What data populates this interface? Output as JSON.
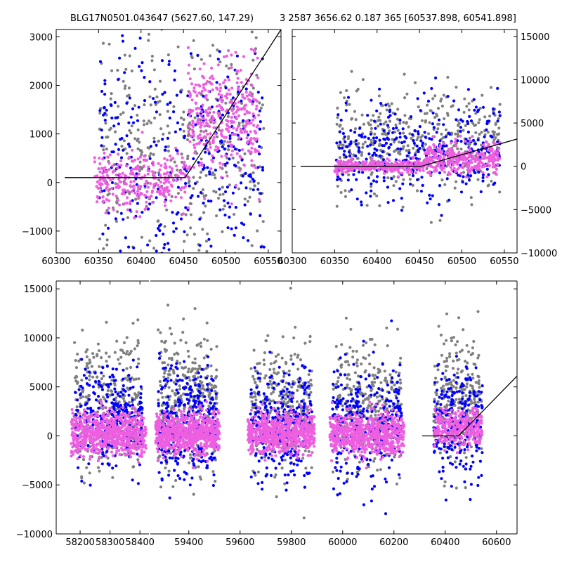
{
  "figure": {
    "title_left": "BLG17N0501.043647 (5627.60, 147.29)",
    "title_right": "3 2587 3656.62 0.187 365 [60537.898, 60541.898]"
  },
  "colors": {
    "series_gray": "#808080",
    "series_blue": "#0000ff",
    "series_magenta": "#ee5ee0",
    "model_line": "#000000"
  },
  "chart_data": [
    {
      "type": "scatter",
      "panel": "top-left",
      "xlim": [
        60300,
        60565
      ],
      "ylim": [
        -1450,
        3150
      ],
      "xticks": [
        60300,
        60350,
        60400,
        60450,
        60500,
        60550
      ],
      "yticks": [
        -1000,
        0,
        1000,
        2000,
        3000
      ],
      "ytick_side": "left",
      "grid": false,
      "series": [
        {
          "color": "#808080",
          "clusters": [
            [
              60350,
              60545,
              600,
              1500,
              420
            ]
          ]
        },
        {
          "color": "#0000ff",
          "clusters": [
            [
              60350,
              60545,
              500,
              1300,
              360
            ]
          ]
        },
        {
          "color": "#ee5ee0",
          "clusters": [
            [
              60345,
              60455,
              0,
              280,
              280
            ],
            [
              60455,
              60540,
              1300,
              650,
              340
            ]
          ]
        }
      ],
      "model_line": {
        "x": [
          60310,
          60452,
          60565
        ],
        "y": [
          100,
          100,
          3150
        ]
      }
    },
    {
      "type": "scatter",
      "panel": "top-right",
      "xlim": [
        60300,
        60565
      ],
      "ylim": [
        -10000,
        15800
      ],
      "xticks": [
        60300,
        60350,
        60400,
        60450,
        60500,
        60550
      ],
      "yticks": [
        -10000,
        -5000,
        0,
        5000,
        10000,
        15000
      ],
      "ytick_side": "right",
      "grid": false,
      "series": [
        {
          "color": "#808080",
          "clusters": [
            [
              60352,
              60545,
              3000,
              3000,
              420
            ]
          ]
        },
        {
          "color": "#0000ff",
          "clusters": [
            [
              60352,
              60545,
              1500,
              2800,
              380
            ]
          ]
        },
        {
          "color": "#ee5ee0",
          "clusters": [
            [
              60350,
              60455,
              0,
              350,
              300
            ],
            [
              60455,
              60545,
              900,
              900,
              320
            ]
          ]
        }
      ],
      "model_line": {
        "x": [
          60310,
          60452,
          60565
        ],
        "y": [
          0,
          0,
          3150
        ]
      }
    },
    {
      "type": "scatter",
      "panel": "bottom",
      "broken_axis": true,
      "xlim_segments": [
        [
          58120,
          58430
        ],
        [
          59250,
          60680
        ]
      ],
      "ylim": [
        -10000,
        15800
      ],
      "xticks": [
        58200,
        58300,
        58400,
        59400,
        59600,
        59800,
        60000,
        60200,
        60400,
        60600
      ],
      "yticks": [
        -10000,
        -5000,
        0,
        5000,
        10000,
        15000
      ],
      "ytick_side": "left",
      "grid": false,
      "series": [
        {
          "color": "#808080",
          "clusters": [
            [
              58180,
              58410,
              3500,
              3500,
              300
            ],
            [
              59280,
              59510,
              3500,
              3500,
              380
            ],
            [
              59640,
              59880,
              3000,
              3300,
              330
            ],
            [
              59960,
              60230,
              3000,
              3300,
              330
            ],
            [
              60355,
              60545,
              3500,
              3500,
              260
            ]
          ]
        },
        {
          "color": "#0000ff",
          "clusters": [
            [
              58180,
              58410,
              1800,
              2500,
              300
            ],
            [
              59280,
              59510,
              1200,
              2800,
              340
            ],
            [
              59640,
              59880,
              1200,
              2800,
              300
            ],
            [
              59960,
              60230,
              1200,
              3000,
              300
            ],
            [
              60355,
              60545,
              1200,
              3000,
              240
            ]
          ]
        },
        {
          "color": "#ee5ee0",
          "clusters": [
            [
              58170,
              58420,
              200,
              1100,
              700
            ],
            [
              59270,
              59520,
              300,
              1000,
              700
            ],
            [
              59630,
              59890,
              200,
              1000,
              650
            ],
            [
              59950,
              60240,
              200,
              1000,
              650
            ],
            [
              60355,
              60545,
              900,
              900,
              320
            ]
          ]
        }
      ],
      "model_line": {
        "x": [
          60310,
          60452,
          60680
        ],
        "y": [
          0,
          0,
          6100
        ]
      }
    }
  ]
}
